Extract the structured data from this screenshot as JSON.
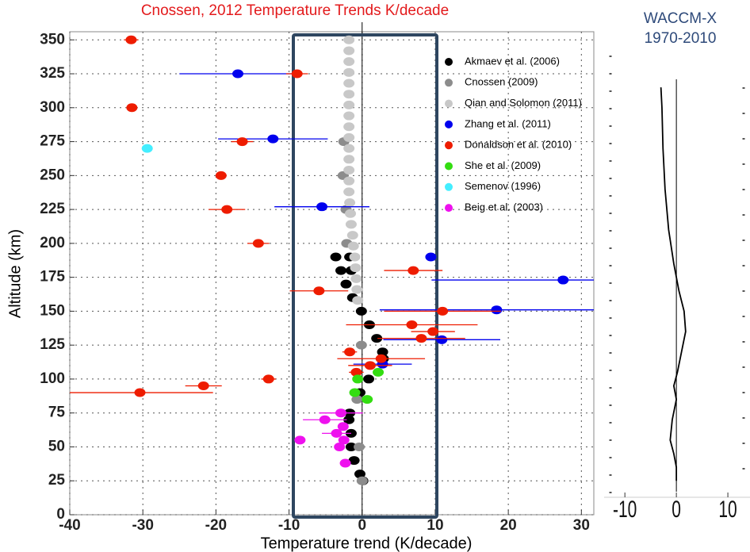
{
  "chart_data": [
    {
      "type": "scatter",
      "title": "Cnossen, 2012 Temperature Trends K/decade",
      "xlabel": "Temperature trend (K/decade)",
      "ylabel": "Altitude (km)",
      "xlim": [
        -40,
        31.7
      ],
      "ylim": [
        0,
        356
      ],
      "xticks": [
        -40,
        -30,
        -20,
        -10,
        0,
        10,
        20,
        30
      ],
      "yticks": [
        0,
        25,
        50,
        75,
        100,
        125,
        150,
        175,
        200,
        225,
        250,
        275,
        300,
        325,
        350
      ],
      "grid": true,
      "legend": "upper right",
      "series": [
        {
          "name": "Akmaev et al. (2006)",
          "color": "#000000",
          "x": [
            -3.6,
            -1.7,
            -2.9,
            -1.5,
            -2.2,
            -1.3,
            -0.1,
            1,
            2,
            2.8,
            2.9,
            0.9,
            -0.3,
            -1.7,
            -1.8,
            -1.5,
            -1.5,
            -1.1,
            -0.3,
            0.1
          ],
          "y": [
            190,
            190,
            180,
            180,
            170,
            160,
            150,
            140,
            130,
            120,
            115,
            100,
            90,
            75,
            70,
            60,
            50,
            40,
            30,
            25
          ]
        },
        {
          "name": "Cnossen (2009)",
          "color": "#8c8c8c",
          "x": [
            -2.5,
            -2.6,
            -2.2,
            -2.1,
            -0.1,
            -0.7,
            -0.4,
            0
          ],
          "y": [
            275,
            250,
            225,
            200,
            125,
            85,
            50,
            25
          ]
        },
        {
          "name": "Qian and Solomon (2011)",
          "color": "#c8c8c8",
          "x": [
            -1.8,
            -1.8,
            -1.8,
            -1.8,
            -1.8,
            -1.8,
            -1.8,
            -1.8,
            -1.8,
            -1.8,
            -1.8,
            -1.8,
            -1.8,
            -1.8,
            -1.8,
            -1.7,
            -1.6,
            -1.5,
            -1.3,
            -1.2,
            -1.0,
            -0.9,
            -0.8,
            -0.7,
            -0.6
          ],
          "y": [
            350,
            342,
            334,
            326,
            318,
            310,
            302,
            294,
            286,
            278,
            270,
            262,
            254,
            246,
            238,
            230,
            222,
            214,
            206,
            198,
            190,
            182,
            174,
            166,
            158
          ]
        },
        {
          "name": "Zhang et al. (2011)",
          "color": "#0000ee",
          "x": [
            -17,
            -12.2,
            -5.5,
            9.4,
            27.5,
            18.4,
            10.9,
            2.8
          ],
          "y": [
            325,
            277,
            227,
            190,
            173,
            151,
            129,
            111
          ],
          "xerr": [
            8,
            7.5,
            6.5,
            null,
            18,
            16,
            8,
            4
          ]
        },
        {
          "name": "Donaldson et al. (2010)",
          "color": "#ee1c00",
          "x": [
            -31.6,
            -8.9,
            -31.5,
            -16.4,
            -19.3,
            -18.5,
            -14.2,
            7,
            -5.9,
            11,
            6.8,
            9.7,
            8.1,
            -1.7,
            2.6,
            1.1,
            -0.8,
            -12.8,
            -21.7,
            -30.4
          ],
          "y": [
            350,
            325,
            300,
            275,
            250,
            225,
            200,
            180,
            165,
            150,
            140,
            135,
            130,
            120,
            115,
            110,
            105,
            100,
            95,
            90
          ],
          "xerr": [
            1,
            1.5,
            null,
            1.5,
            null,
            2.5,
            1.5,
            4,
            4,
            8,
            9,
            3,
            6,
            1,
            6,
            3,
            1,
            1,
            2.5,
            10
          ]
        },
        {
          "name": "She et al. (2009)",
          "color": "#33dd11",
          "x": [
            2.2,
            -0.6,
            -1,
            0.7
          ],
          "y": [
            105,
            100,
            90,
            85
          ]
        },
        {
          "name": "Semenov (1996)",
          "color": "#44eeff",
          "x": [
            -29.4
          ],
          "y": [
            270
          ]
        },
        {
          "name": "Beig et al. (2003)",
          "color": "#ee11ee",
          "x": [
            -8.5,
            -5.1,
            -2.9,
            -2.6,
            -3.5,
            -2.5,
            -3.1,
            -2.3
          ],
          "y": [
            55,
            70,
            75,
            65,
            60,
            55,
            50,
            38
          ],
          "xerr": [
            null,
            3,
            3,
            null,
            2,
            null,
            null,
            null
          ]
        }
      ]
    },
    {
      "type": "line",
      "title": [
        "WACCM-X",
        "1970-2010"
      ],
      "xlim": [
        -12.8,
        14.3
      ],
      "ylim": [
        0,
        356
      ],
      "xticks": [
        -10,
        0,
        10
      ],
      "series": [
        {
          "color": "#000000",
          "x": [
            0,
            0,
            -0.5,
            -1.2,
            -0.8,
            0,
            -0.5,
            0.2,
            1,
            1.8,
            1.5,
            0.5,
            -0.5,
            -1.5,
            -2.2,
            -2.6,
            -2.8,
            -3
          ],
          "y": [
            25,
            35,
            45,
            55,
            70,
            85,
            95,
            105,
            120,
            135,
            150,
            165,
            185,
            210,
            240,
            270,
            300,
            315
          ]
        }
      ]
    }
  ]
}
